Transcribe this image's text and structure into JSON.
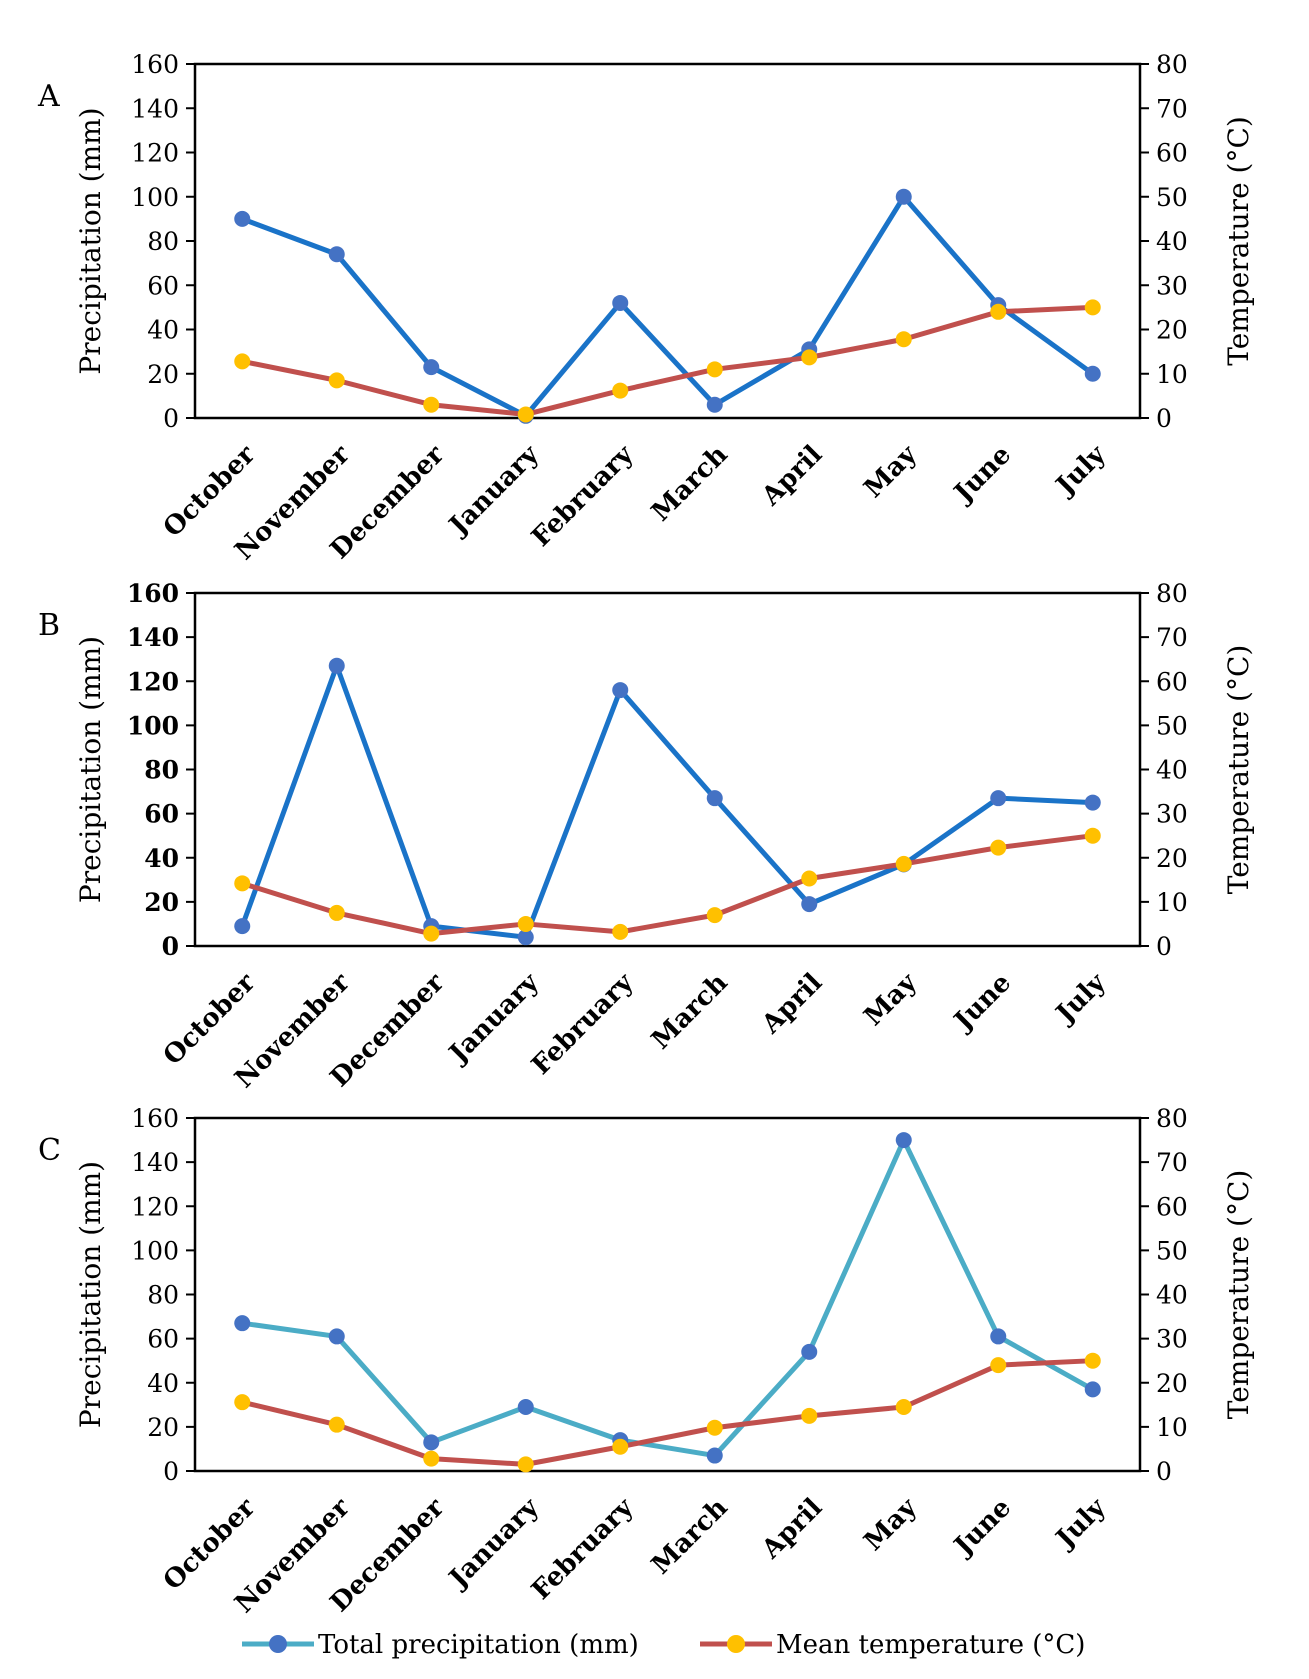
{
  "chart_data": [
    {
      "panel_label": "A",
      "type": "line",
      "categories": [
        "October",
        "November",
        "December",
        "January",
        "February",
        "March",
        "April",
        "May",
        "June",
        "July"
      ],
      "series": [
        {
          "name": "Total precipitation (mm)",
          "axis": "left",
          "color": "#1a73c8",
          "values": [
            90,
            74,
            23,
            1,
            52,
            6,
            31,
            100,
            51,
            20
          ]
        },
        {
          "name": "Mean temperature (°C)",
          "axis": "right",
          "color": "#c0504d",
          "marker_color": "#ffc000",
          "values": [
            12.8,
            8.5,
            3.0,
            0.8,
            6.2,
            11.0,
            13.7,
            17.8,
            24.0,
            25.0
          ]
        }
      ],
      "ylabel": "Precipitation (mm)",
      "ylim": [
        0,
        160
      ],
      "yticks": [
        0,
        20,
        40,
        60,
        80,
        100,
        120,
        140,
        160
      ],
      "y2label": "Temperature (°C)",
      "y2lim": [
        0,
        80
      ],
      "y2ticks": [
        0,
        10,
        20,
        30,
        40,
        50,
        60,
        70,
        80
      ],
      "xlabel": ""
    },
    {
      "panel_label": "B",
      "type": "line",
      "categories": [
        "October",
        "November",
        "December",
        "January",
        "February",
        "March",
        "April",
        "May",
        "June",
        "July"
      ],
      "series": [
        {
          "name": "Total precipitation (mm)",
          "axis": "left",
          "color": "#1a73c8",
          "values": [
            9,
            127,
            9,
            4,
            116,
            67,
            19,
            37,
            67,
            65
          ]
        },
        {
          "name": "Mean temperature (°C)",
          "axis": "right",
          "color": "#c0504d",
          "marker_color": "#ffc000",
          "values": [
            14.2,
            7.5,
            2.8,
            5.0,
            3.2,
            7.0,
            15.3,
            18.6,
            22.3,
            25.0
          ]
        }
      ],
      "ylabel": "Precipitation (mm)",
      "ylim": [
        0,
        160
      ],
      "yticks": [
        0,
        20,
        40,
        60,
        80,
        100,
        120,
        140,
        160
      ],
      "y2label": "Temperature (°C)",
      "y2lim": [
        0,
        80
      ],
      "y2ticks": [
        0,
        10,
        20,
        30,
        40,
        50,
        60,
        70,
        80
      ],
      "xlabel": ""
    },
    {
      "panel_label": "C",
      "type": "line",
      "categories": [
        "October",
        "November",
        "December",
        "January",
        "February",
        "March",
        "April",
        "May",
        "June",
        "July"
      ],
      "series": [
        {
          "name": "Total precipitation (mm)",
          "axis": "left",
          "color": "#4bacc6",
          "values": [
            67,
            61,
            13,
            29,
            14,
            7,
            54,
            150,
            61,
            37
          ]
        },
        {
          "name": "Mean temperature (°C)",
          "axis": "right",
          "color": "#c0504d",
          "marker_color": "#ffc000",
          "values": [
            15.6,
            10.5,
            2.8,
            1.5,
            5.5,
            9.8,
            12.5,
            14.5,
            24.0,
            25.0
          ]
        }
      ],
      "ylabel": "Precipitation  (mm)",
      "ylim": [
        0,
        160
      ],
      "yticks": [
        0,
        20,
        40,
        60,
        80,
        100,
        120,
        140,
        160
      ],
      "y2label": "Temperature (°C)",
      "y2lim": [
        0,
        80
      ],
      "y2ticks": [
        0,
        10,
        20,
        30,
        40,
        50,
        60,
        70,
        80
      ],
      "xlabel": ""
    }
  ],
  "legend": {
    "placement": "bottom-center",
    "items": [
      {
        "label": "Total precipitation (mm)",
        "line_color": "#4bacc6",
        "marker_color": "#4472c4"
      },
      {
        "label": "Mean temperature (°C)",
        "line_color": "#c0504d",
        "marker_color": "#ffc000"
      }
    ]
  },
  "colors": {
    "precip_marker": "#4472c4",
    "temp_marker": "#ffc000"
  }
}
